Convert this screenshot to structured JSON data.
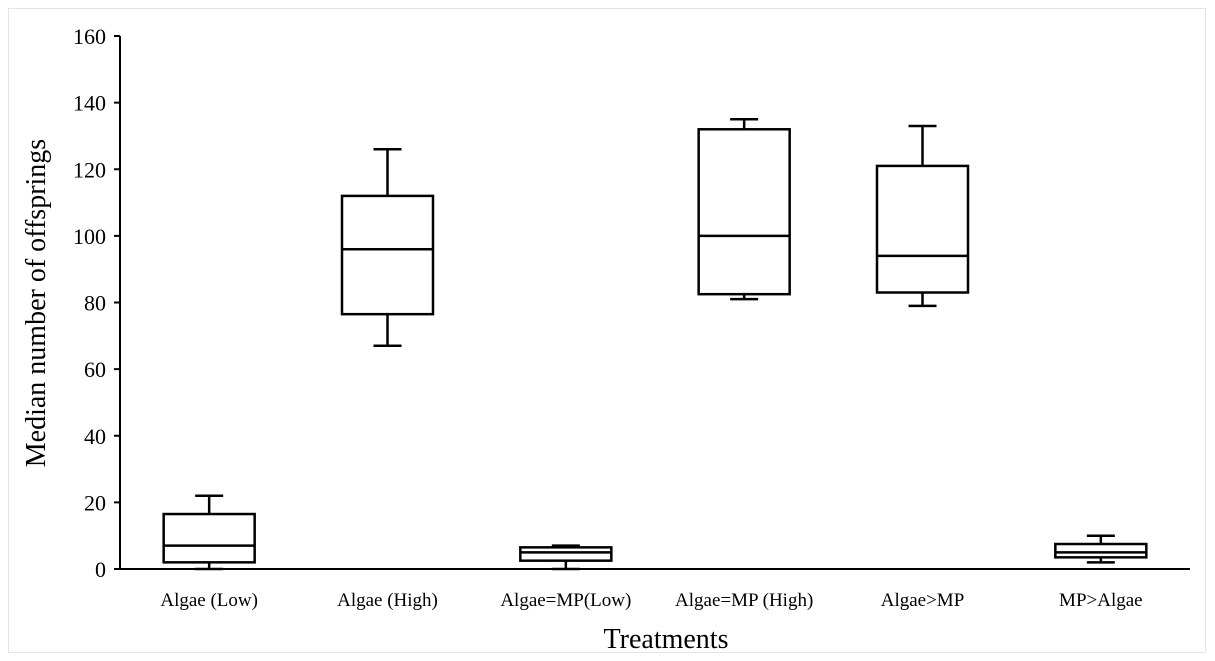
{
  "chart_data": {
    "type": "box",
    "xlabel": "Treatments",
    "ylabel": "Median  number of offsprings",
    "ylim": [
      0,
      160
    ],
    "yticks": [
      0,
      20,
      40,
      60,
      80,
      100,
      120,
      140,
      160
    ],
    "grid": false,
    "categories": [
      "Algae (Low)",
      "Algae (High)",
      "Algae=MP(Low)",
      "Algae=MP (High)",
      "Algae>MP",
      "MP>Algae"
    ],
    "boxes": [
      {
        "min": 0,
        "q1": 2,
        "median": 7,
        "q3": 16.5,
        "max": 22
      },
      {
        "min": 67,
        "q1": 76.5,
        "median": 96,
        "q3": 112,
        "max": 126
      },
      {
        "min": 0,
        "q1": 2.5,
        "median": 5,
        "q3": 6.5,
        "max": 7
      },
      {
        "min": 81,
        "q1": 82.5,
        "median": 100,
        "q3": 132,
        "max": 135
      },
      {
        "min": 79,
        "q1": 83,
        "median": 94,
        "q3": 121,
        "max": 133
      },
      {
        "min": 2,
        "q1": 3.5,
        "median": 5,
        "q3": 7.5,
        "max": 10
      }
    ]
  }
}
